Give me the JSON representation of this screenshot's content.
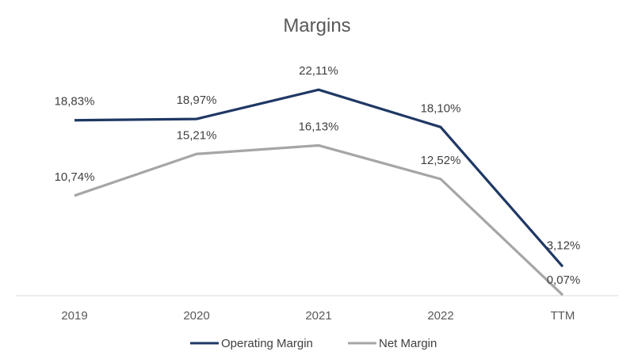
{
  "chart_data": {
    "type": "line",
    "title": "Margins",
    "xlabel": "",
    "ylabel": "",
    "categories": [
      "2019",
      "2020",
      "2021",
      "2022",
      "TTM"
    ],
    "series": [
      {
        "name": "Operating Margin",
        "color": "#1f3864",
        "values": [
          18.83,
          18.97,
          22.11,
          18.1,
          3.12
        ],
        "labels": [
          "18,83%",
          "18,97%",
          "22,11%",
          "18,10%",
          "3,12%"
        ]
      },
      {
        "name": "Net Margin",
        "color": "#a6a6a6",
        "values": [
          10.74,
          15.21,
          16.13,
          12.52,
          0.07
        ],
        "labels": [
          "10,74%",
          "15,21%",
          "16,13%",
          "12,52%",
          "0,07%"
        ]
      }
    ],
    "ylim": [
      0,
      24
    ],
    "grid": false,
    "legend": "bottom",
    "axis_color": "#d9d9d9"
  }
}
